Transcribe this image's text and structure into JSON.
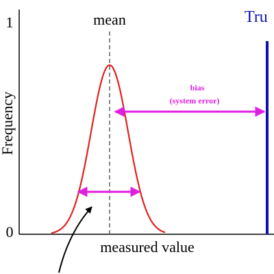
{
  "axis": {
    "y_top": "1",
    "y_bottom": "0",
    "y_label": "Frequency",
    "x_label": "measured value"
  },
  "labels": {
    "mean": "mean",
    "true_value": "Tru",
    "bias": "bias",
    "bias_note": "(system error)"
  }
}
